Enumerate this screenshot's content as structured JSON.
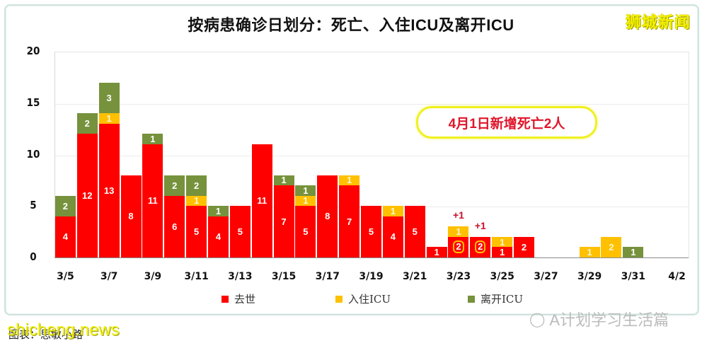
{
  "title": "按病患确诊日划分：死亡、入住ICU及离开ICU",
  "brand": "狮城新闻",
  "callout": "4月1日新增死亡2人",
  "source": "图表：思敏小路",
  "watermarks": {
    "site": "shicheng.news",
    "account": "A计划学习生活篇",
    "account_icon": "wechat-icon"
  },
  "colors": {
    "death": "#ff0000",
    "icu_in": "#ffc000",
    "icu_out": "#76923c",
    "callout_text": "#e0162b",
    "callout_border": "#f0f020"
  },
  "legend": [
    {
      "key": "death",
      "label": "去世"
    },
    {
      "key": "icu_in",
      "label": "入住ICU"
    },
    {
      "key": "icu_out",
      "label": "离开ICU"
    }
  ],
  "annotations": [
    {
      "date": "3/23",
      "text": "+1"
    },
    {
      "date": "3/24",
      "text": "+1"
    }
  ],
  "chart_data": {
    "type": "bar",
    "stacked": true,
    "title": "按病患确诊日划分：死亡、入住ICU及离开ICU",
    "xlabel": "",
    "ylabel": "",
    "ylim": [
      0,
      20
    ],
    "yticks": [
      0,
      5,
      10,
      15,
      20
    ],
    "grid": true,
    "legend_position": "bottom",
    "x_tick_labels": [
      "3/5",
      "3/7",
      "3/9",
      "3/11",
      "3/13",
      "3/15",
      "3/17",
      "3/19",
      "3/21",
      "3/23",
      "3/25",
      "3/27",
      "3/29",
      "3/31",
      "4/2"
    ],
    "categories": [
      "3/5",
      "3/6",
      "3/7",
      "3/8",
      "3/9",
      "3/10",
      "3/11",
      "3/12",
      "3/13",
      "3/14",
      "3/15",
      "3/16",
      "3/17",
      "3/18",
      "3/19",
      "3/20",
      "3/21",
      "3/22",
      "3/23",
      "3/24",
      "3/25",
      "3/26",
      "3/27",
      "3/28",
      "3/29",
      "3/30",
      "3/31",
      "4/1",
      "4/2"
    ],
    "series": [
      {
        "name": "去世",
        "key": "death",
        "values": [
          4,
          12,
          13,
          8,
          11,
          6,
          5,
          4,
          5,
          11,
          7,
          5,
          8,
          7,
          5,
          4,
          5,
          1,
          2,
          2,
          1,
          2,
          0,
          0,
          0,
          0,
          0,
          0,
          0
        ]
      },
      {
        "name": "入住ICU",
        "key": "icu_in",
        "values": [
          0,
          0,
          1,
          0,
          0,
          0,
          1,
          0,
          0,
          0,
          0,
          1,
          0,
          1,
          0,
          1,
          0,
          0,
          1,
          0,
          1,
          0,
          0,
          0,
          1,
          2,
          0,
          0,
          0
        ]
      },
      {
        "name": "离开ICU",
        "key": "icu_out",
        "values": [
          2,
          2,
          3,
          0,
          1,
          2,
          2,
          1,
          0,
          0,
          1,
          1,
          0,
          0,
          0,
          0,
          0,
          0,
          0,
          0,
          0,
          0,
          0,
          0,
          0,
          0,
          1,
          0,
          0
        ]
      }
    ],
    "highlighted_death_values": [
      "3/23",
      "3/24"
    ],
    "annotations": [
      {
        "date": "3/23",
        "text": "+1"
      },
      {
        "date": "3/24",
        "text": "+1"
      },
      {
        "text": "4月1日新增死亡2人"
      }
    ]
  }
}
